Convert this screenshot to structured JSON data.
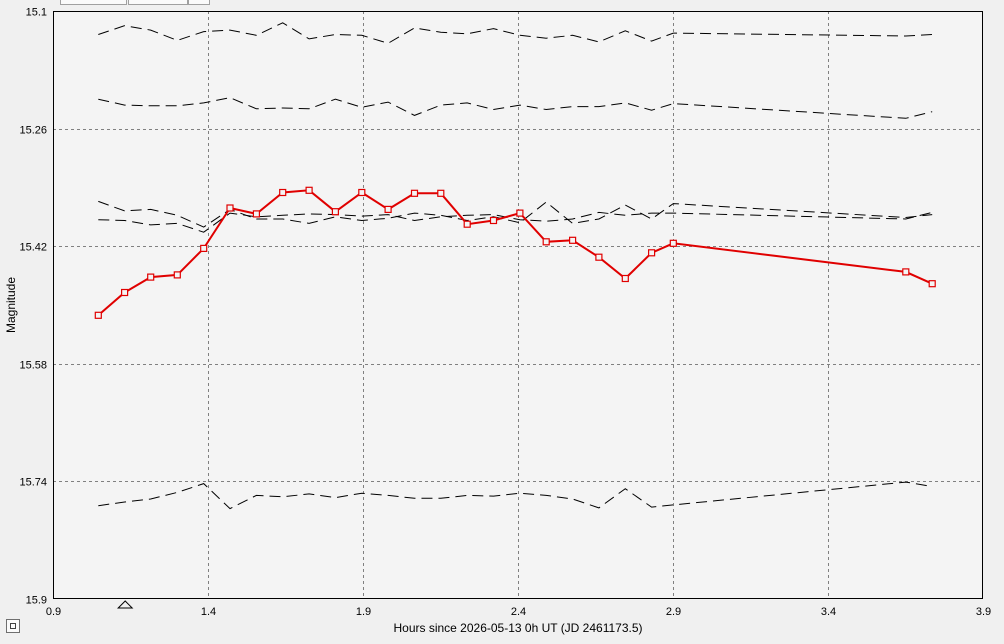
{
  "chart_data": {
    "type": "line",
    "xlabel": "Hours since 2026-05-13 0h UT (JD 2461173.5)",
    "ylabel": "Magnitude",
    "xlim": [
      0.9,
      3.9
    ],
    "ylim": [
      15.1,
      15.9
    ],
    "y_inverted": true,
    "grid": true,
    "x_ticks": [
      "0.9",
      "1.4",
      "1.9",
      "2.4",
      "2.9",
      "3.4",
      "3.9"
    ],
    "y_ticks": [
      "15.1",
      "15.26",
      "15.42",
      "15.58",
      "15.74",
      "15.9"
    ],
    "marker": "triangle",
    "marker_x": 1.133,
    "colors": {
      "target": "#e00000",
      "comparison": "#000000",
      "grid": "#808080",
      "plot_background": "#f4f4f4"
    },
    "series": [
      {
        "role": "target",
        "x": [
          1.046,
          1.131,
          1.215,
          1.301,
          1.386,
          1.471,
          1.556,
          1.641,
          1.726,
          1.811,
          1.896,
          1.981,
          2.066,
          2.151,
          2.236,
          2.321,
          2.406,
          2.491,
          2.576,
          2.661,
          2.746,
          2.831,
          2.901,
          3.651,
          3.736
        ],
        "values": [
          15.514,
          15.483,
          15.462,
          15.459,
          15.423,
          15.368,
          15.376,
          15.347,
          15.344,
          15.373,
          15.347,
          15.37,
          15.348,
          15.348,
          15.39,
          15.385,
          15.375,
          15.414,
          15.412,
          15.435,
          15.464,
          15.429,
          15.416,
          15.455,
          15.471
        ]
      },
      {
        "role": "comparison",
        "x": [
          1.046,
          1.131,
          1.215,
          1.301,
          1.386,
          1.471,
          1.556,
          1.641,
          1.726,
          1.811,
          1.896,
          1.981,
          2.066,
          2.151,
          2.236,
          2.321,
          2.406,
          2.491,
          2.576,
          2.661,
          2.746,
          2.831,
          2.901,
          3.651,
          3.736
        ],
        "values": [
          15.132,
          15.12,
          15.126,
          15.14,
          15.128,
          15.126,
          15.133,
          15.116,
          15.138,
          15.132,
          15.133,
          15.144,
          15.123,
          15.129,
          15.131,
          15.124,
          15.133,
          15.137,
          15.133,
          15.142,
          15.127,
          15.141,
          15.13,
          15.134,
          15.132
        ]
      },
      {
        "role": "comparison",
        "x": [
          1.046,
          1.131,
          1.215,
          1.301,
          1.386,
          1.471,
          1.556,
          1.641,
          1.726,
          1.811,
          1.896,
          1.981,
          2.066,
          2.151,
          2.236,
          2.321,
          2.406,
          2.491,
          2.576,
          2.661,
          2.746,
          2.831,
          2.901,
          3.651,
          3.736
        ],
        "values": [
          15.22,
          15.228,
          15.229,
          15.229,
          15.225,
          15.218,
          15.233,
          15.232,
          15.233,
          15.22,
          15.231,
          15.224,
          15.242,
          15.228,
          15.225,
          15.234,
          15.228,
          15.234,
          15.23,
          15.23,
          15.225,
          15.235,
          15.226,
          15.246,
          15.237
        ]
      },
      {
        "role": "comparison",
        "x": [
          1.046,
          1.131,
          1.215,
          1.301,
          1.386,
          1.471,
          1.556,
          1.641,
          1.726,
          1.811,
          1.896,
          1.981,
          2.066,
          2.151,
          2.236,
          2.321,
          2.406,
          2.491,
          2.576,
          2.661,
          2.746,
          2.831,
          2.901,
          3.651,
          3.736
        ],
        "values": [
          15.359,
          15.372,
          15.37,
          15.378,
          15.394,
          15.37,
          15.383,
          15.383,
          15.389,
          15.38,
          15.385,
          15.382,
          15.375,
          15.378,
          15.385,
          15.38,
          15.388,
          15.36,
          15.389,
          15.383,
          15.364,
          15.383,
          15.362,
          15.381,
          15.377
        ]
      },
      {
        "role": "comparison",
        "x": [
          1.046,
          1.131,
          1.215,
          1.301,
          1.386,
          1.471,
          1.556,
          1.641,
          1.726,
          1.811,
          1.896,
          1.981,
          2.066,
          2.151,
          2.236,
          2.321,
          2.406,
          2.491,
          2.576,
          2.661,
          2.746,
          2.831,
          2.901,
          3.651,
          3.736
        ],
        "values": [
          15.384,
          15.385,
          15.391,
          15.389,
          15.401,
          15.375,
          15.38,
          15.378,
          15.376,
          15.377,
          15.379,
          15.377,
          15.385,
          15.38,
          15.378,
          15.377,
          15.384,
          15.386,
          15.383,
          15.374,
          15.378,
          15.375,
          15.375,
          15.383,
          15.374
        ]
      },
      {
        "role": "comparison",
        "x": [
          1.046,
          1.131,
          1.215,
          1.301,
          1.386,
          1.471,
          1.556,
          1.641,
          1.726,
          1.811,
          1.896,
          1.981,
          2.066,
          2.151,
          2.236,
          2.321,
          2.406,
          2.491,
          2.576,
          2.661,
          2.746,
          2.831,
          2.901,
          3.651,
          3.736
        ],
        "values": [
          15.773,
          15.768,
          15.764,
          15.755,
          15.743,
          15.777,
          15.759,
          15.761,
          15.757,
          15.762,
          15.756,
          15.759,
          15.763,
          15.763,
          15.759,
          15.76,
          15.756,
          15.759,
          15.764,
          15.776,
          15.75,
          15.775,
          15.772,
          15.741,
          15.747
        ]
      }
    ]
  }
}
